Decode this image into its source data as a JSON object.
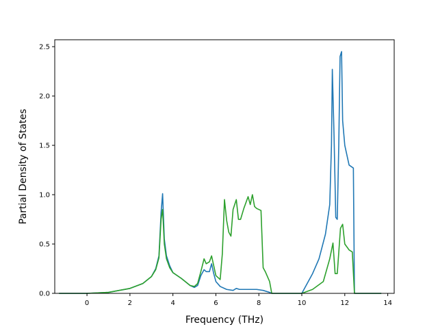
{
  "chart_data": {
    "type": "line",
    "xlabel": "Frequency (THz)",
    "ylabel": "Partial Density of States",
    "xlim": [
      -1.5,
      14.3
    ],
    "ylim": [
      0.0,
      2.57
    ],
    "xticks": [
      0,
      2,
      4,
      6,
      8,
      10,
      12,
      14
    ],
    "yticks": [
      0.0,
      0.5,
      1.0,
      1.5,
      2.0,
      2.5
    ],
    "xtick_labels": [
      "0",
      "2",
      "4",
      "6",
      "8",
      "10",
      "12",
      "14"
    ],
    "ytick_labels": [
      "0.0",
      "0.5",
      "1.0",
      "1.5",
      "2.0",
      "2.5"
    ],
    "grid": false,
    "legend": "none",
    "series": [
      {
        "color": "#1f77b4",
        "x": [
          -1.3,
          0.0,
          1.0,
          2.0,
          2.6,
          3.0,
          3.2,
          3.35,
          3.45,
          3.52,
          3.6,
          3.7,
          3.85,
          4.0,
          4.4,
          4.8,
          5.0,
          5.15,
          5.3,
          5.45,
          5.55,
          5.7,
          5.8,
          5.9,
          6.0,
          6.2,
          6.5,
          6.8,
          6.95,
          7.1,
          7.5,
          7.9,
          8.2,
          8.5,
          8.6,
          8.8,
          10.0,
          10.2,
          10.5,
          10.8,
          11.1,
          11.3,
          11.38,
          11.42,
          11.5,
          11.58,
          11.65,
          11.72,
          11.78,
          11.85,
          11.9,
          12.0,
          12.1,
          12.2,
          12.4,
          12.45,
          13.7
        ],
        "values": [
          0.0,
          0.0,
          0.01,
          0.05,
          0.1,
          0.17,
          0.25,
          0.38,
          0.82,
          1.01,
          0.55,
          0.38,
          0.28,
          0.21,
          0.15,
          0.08,
          0.06,
          0.08,
          0.18,
          0.24,
          0.22,
          0.22,
          0.3,
          0.2,
          0.12,
          0.07,
          0.04,
          0.03,
          0.05,
          0.04,
          0.04,
          0.04,
          0.03,
          0.01,
          0.0,
          0.0,
          0.0,
          0.08,
          0.2,
          0.35,
          0.6,
          0.9,
          1.5,
          2.27,
          1.6,
          0.77,
          0.75,
          1.5,
          2.4,
          2.45,
          1.75,
          1.5,
          1.4,
          1.3,
          1.27,
          0.0,
          0.0
        ]
      },
      {
        "color": "#2ca02c",
        "x": [
          -1.3,
          0.0,
          1.0,
          2.0,
          2.6,
          3.0,
          3.2,
          3.35,
          3.45,
          3.52,
          3.6,
          3.7,
          3.85,
          4.0,
          4.4,
          4.8,
          5.0,
          5.15,
          5.3,
          5.45,
          5.55,
          5.7,
          5.8,
          5.9,
          6.0,
          6.2,
          6.3,
          6.4,
          6.5,
          6.6,
          6.7,
          6.8,
          6.95,
          7.05,
          7.15,
          7.3,
          7.5,
          7.6,
          7.7,
          7.8,
          7.9,
          8.1,
          8.2,
          8.3,
          8.5,
          8.6,
          8.8,
          10.0,
          10.5,
          11.0,
          11.3,
          11.45,
          11.55,
          11.65,
          11.8,
          11.9,
          12.0,
          12.2,
          12.35,
          12.45,
          13.7
        ],
        "values": [
          0.0,
          0.0,
          0.01,
          0.05,
          0.1,
          0.17,
          0.24,
          0.36,
          0.75,
          0.85,
          0.5,
          0.35,
          0.26,
          0.21,
          0.15,
          0.08,
          0.07,
          0.1,
          0.22,
          0.35,
          0.3,
          0.32,
          0.38,
          0.28,
          0.18,
          0.14,
          0.4,
          0.95,
          0.74,
          0.62,
          0.58,
          0.85,
          0.95,
          0.75,
          0.75,
          0.86,
          0.98,
          0.9,
          1.0,
          0.88,
          0.86,
          0.84,
          0.26,
          0.22,
          0.12,
          0.0,
          0.0,
          0.0,
          0.04,
          0.12,
          0.35,
          0.51,
          0.2,
          0.2,
          0.66,
          0.7,
          0.5,
          0.44,
          0.42,
          0.0,
          0.0
        ]
      }
    ]
  }
}
